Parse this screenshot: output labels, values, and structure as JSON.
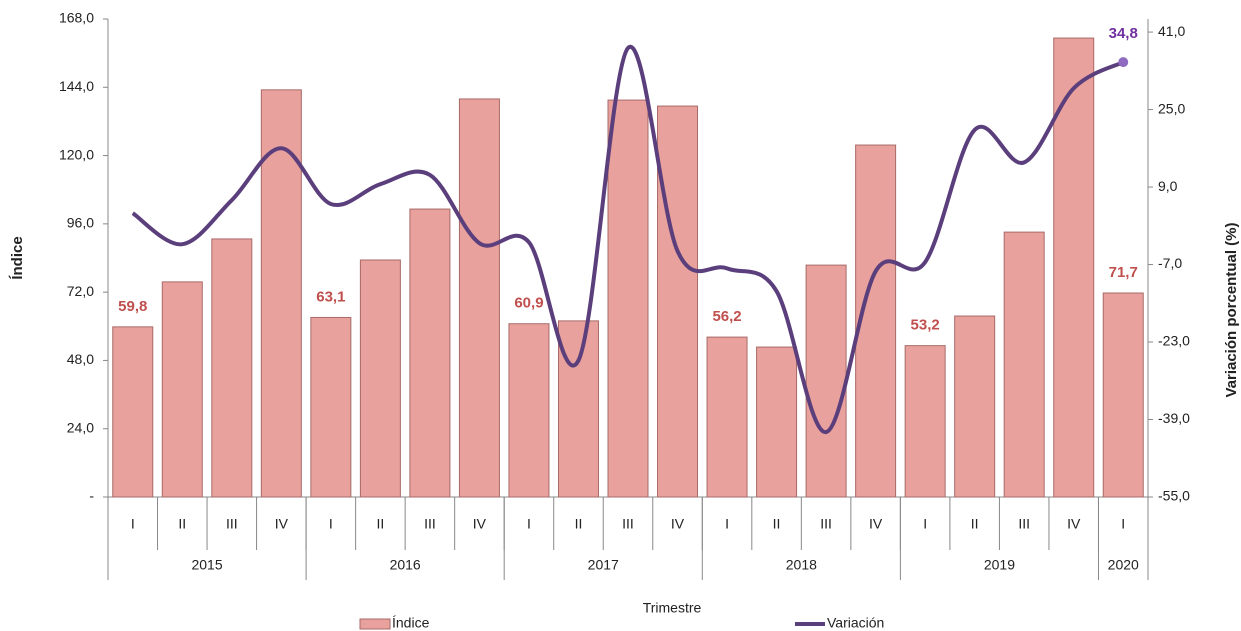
{
  "chart_data": {
    "type": "bar_line",
    "x_label": "Trimestre",
    "y_label": "Índice",
    "y2_label": "Variación porcentual (%)",
    "categories": [
      "I",
      "II",
      "III",
      "IV",
      "I",
      "II",
      "III",
      "IV",
      "I",
      "II",
      "III",
      "IV",
      "I",
      "II",
      "III",
      "IV",
      "I",
      "II",
      "III",
      "IV",
      "I"
    ],
    "years": [
      {
        "name": "2015",
        "span": 4
      },
      {
        "name": "2016",
        "span": 4
      },
      {
        "name": "2017",
        "span": 4
      },
      {
        "name": "2018",
        "span": 4
      },
      {
        "name": "2019",
        "span": 4
      },
      {
        "name": "2020",
        "span": 1
      }
    ],
    "series": [
      {
        "name": "Índice",
        "type": "bar",
        "color": "#e8a19d",
        "label_color": "#c0504d",
        "values": [
          59.8,
          75.6,
          90.7,
          143.1,
          63.1,
          83.3,
          101.2,
          139.9,
          60.9,
          61.9,
          139.5,
          137.4,
          56.2,
          52.7,
          81.5,
          123.7,
          53.2,
          63.6,
          93.1,
          161.3,
          71.7
        ],
        "value_labels": [
          "59,8",
          null,
          null,
          null,
          "63,1",
          null,
          null,
          null,
          "60,9",
          null,
          null,
          null,
          "56,2",
          null,
          null,
          null,
          "53,2",
          null,
          null,
          null,
          "71,7"
        ]
      },
      {
        "name": "Variación",
        "type": "line",
        "axis": "y2",
        "color": "#5b3f7c",
        "label_color": "#7030a0",
        "values": [
          3.6,
          -2.8,
          6.3,
          17.0,
          5.5,
          9.6,
          11.5,
          -2.6,
          -2.4,
          -26.8,
          37.7,
          -4.2,
          -7.8,
          -12.5,
          -41.6,
          -8.4,
          -6.5,
          20.8,
          14.1,
          29.4,
          34.8
        ],
        "value_labels": [
          null,
          null,
          null,
          null,
          null,
          null,
          null,
          null,
          null,
          null,
          null,
          null,
          null,
          null,
          null,
          null,
          null,
          null,
          null,
          null,
          "34,8"
        ]
      }
    ],
    "ylim": [
      0,
      168
    ],
    "yticks": [
      {
        "value": 0,
        "label": "-"
      },
      {
        "value": 24,
        "label": "24,0"
      },
      {
        "value": 48,
        "label": "48,0"
      },
      {
        "value": 72,
        "label": "72,0"
      },
      {
        "value": 96,
        "label": "96,0"
      },
      {
        "value": 120,
        "label": "120,0"
      },
      {
        "value": 144,
        "label": "144,0"
      },
      {
        "value": 168,
        "label": "168,0"
      }
    ],
    "y2lim": [
      -55,
      43.7
    ],
    "y2ticks": [
      {
        "value": -55,
        "label": "-55,0"
      },
      {
        "value": -39,
        "label": "-39,0"
      },
      {
        "value": -23,
        "label": "-23,0"
      },
      {
        "value": -7,
        "label": "-7,0"
      },
      {
        "value": 9,
        "label": "9,0"
      },
      {
        "value": 25,
        "label": "25,0"
      },
      {
        "value": 41,
        "label": "41,0"
      }
    ]
  }
}
